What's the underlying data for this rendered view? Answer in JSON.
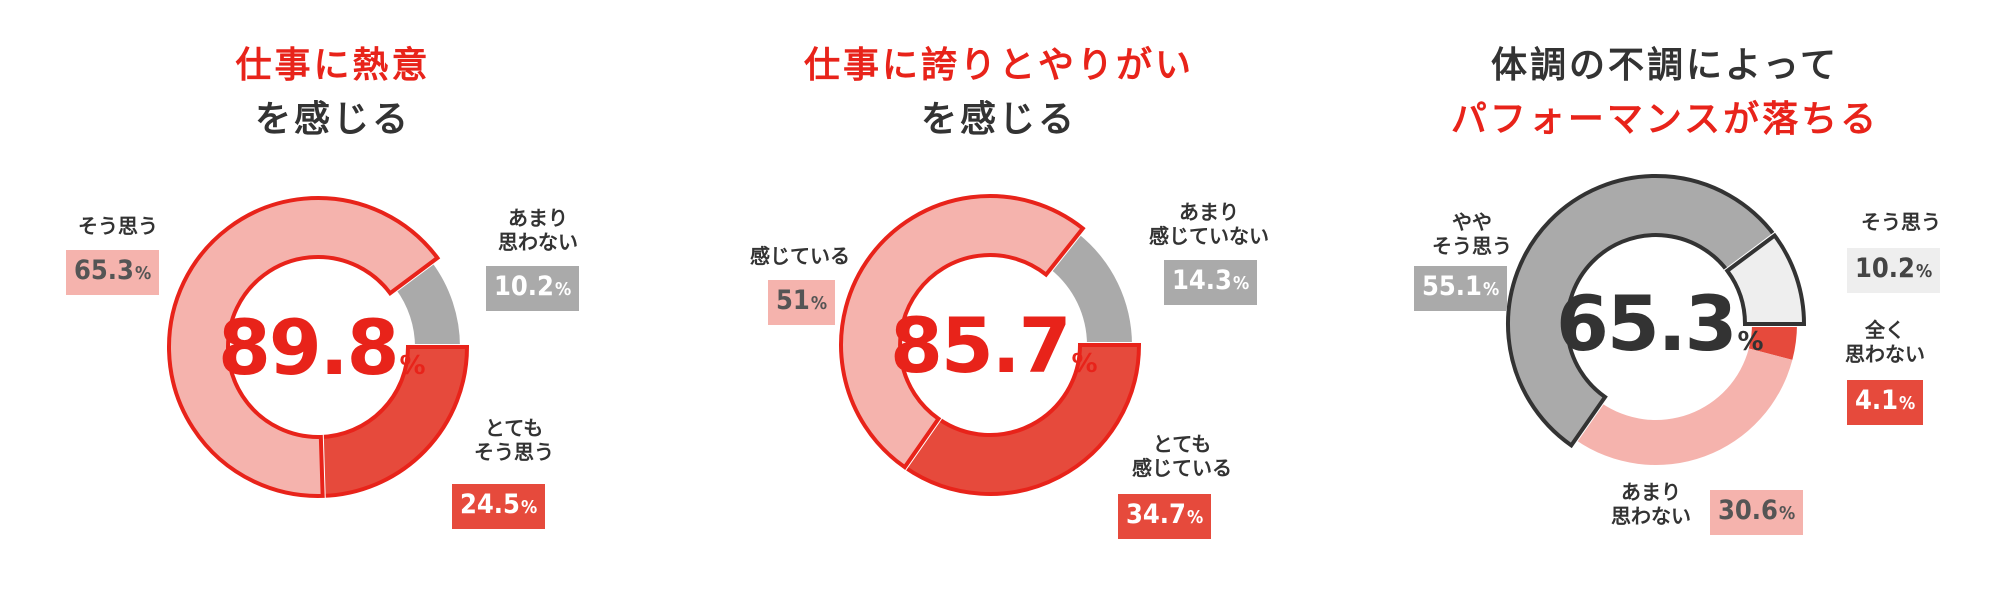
{
  "colors": {
    "accent_red": "#e8231a",
    "dark_text": "#333333",
    "seg_pink": "#f5b3ad",
    "seg_red": "#e64a3c",
    "seg_grey": "#aaaaaa",
    "seg_light": "#eeeeee"
  },
  "chart_data": [
    {
      "type": "donut",
      "title_line1": "仕事に熱意",
      "title_line2": "を感じる",
      "center_value": "89.8",
      "center_unit": "%",
      "segments": [
        {
          "label": "とても\nそう思う",
          "value": 24.5,
          "value_text": "24.5",
          "color": "#e64a3c",
          "highlight": true
        },
        {
          "label": "そう思う",
          "value": 65.3,
          "value_text": "65.3",
          "color": "#f5b3ad",
          "highlight": true
        },
        {
          "label": "あまり\n思わない",
          "value": 10.2,
          "value_text": "10.2",
          "color": "#aaaaaa",
          "highlight": false
        }
      ]
    },
    {
      "type": "donut",
      "title_line1": "仕事に誇りとやりがい",
      "title_line2": "を感じる",
      "center_value": "85.7",
      "center_unit": "%",
      "segments": [
        {
          "label": "とても\n感じている",
          "value": 34.7,
          "value_text": "34.7",
          "color": "#e64a3c",
          "highlight": true
        },
        {
          "label": "感じている",
          "value": 51,
          "value_text": "51",
          "color": "#f5b3ad",
          "highlight": true
        },
        {
          "label": "あまり\n感じていない",
          "value": 14.3,
          "value_text": "14.3",
          "color": "#aaaaaa",
          "highlight": false
        }
      ]
    },
    {
      "type": "donut",
      "title_line1": "体調の不調によって",
      "title_line2": "パフォーマンスが落ちる",
      "center_value": "65.3",
      "center_unit": "%",
      "segments": [
        {
          "label": "全く\n思わない",
          "value": 4.1,
          "value_text": "4.1",
          "color": "#e64a3c",
          "highlight": false
        },
        {
          "label": "あまり\n思わない",
          "value": 30.6,
          "value_text": "30.6",
          "color": "#f5b3ad",
          "highlight": false
        },
        {
          "label": "やや\nそう思う",
          "value": 55.1,
          "value_text": "55.1",
          "color": "#aaaaaa",
          "highlight": true
        },
        {
          "label": "そう思う",
          "value": 10.2,
          "value_text": "10.2",
          "color": "#eeeeee",
          "highlight": true
        }
      ]
    }
  ]
}
